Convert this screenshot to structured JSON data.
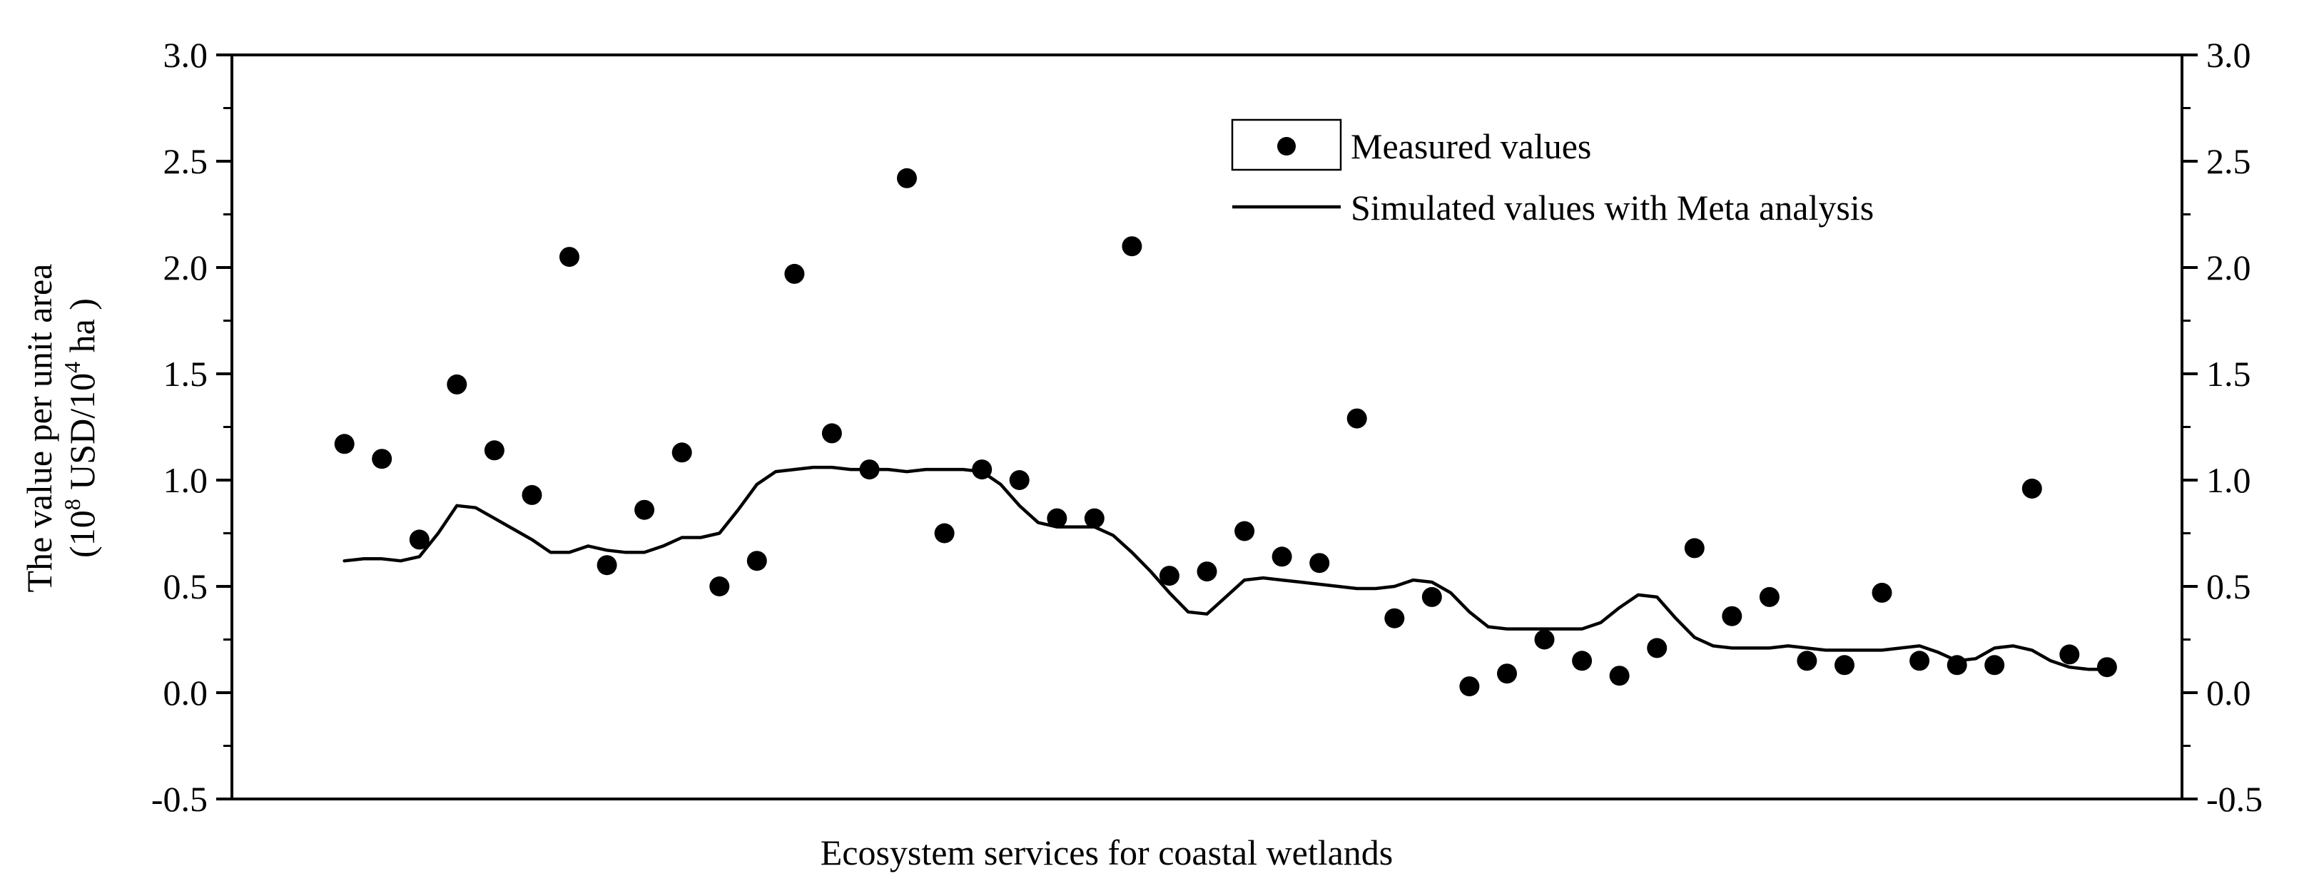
{
  "chart_data": {
    "type": "scatter",
    "title": "",
    "xlabel": "Ecosystem services for coastal wetlands",
    "ylabel_line1": "The value per unit area",
    "ylabel_line2_prefix": "(10",
    "ylabel_line2_sup1": "8",
    "ylabel_line2_mid": " USD/10",
    "ylabel_line2_sup2": "4",
    "ylabel_line2_suffix": " ha )",
    "ylim": [
      -0.5,
      3.0
    ],
    "xlim": [
      -2,
      50
    ],
    "yticks_major": [
      "-0.5",
      "0.0",
      "0.5",
      "1.0",
      "1.5",
      "2.0",
      "2.5",
      "3.0"
    ],
    "ytick_values": [
      -0.5,
      0.0,
      0.5,
      1.0,
      1.5,
      2.0,
      2.5,
      3.0
    ],
    "minor_step": 0.25,
    "legend_position": "top-right",
    "series": [
      {
        "name": "Measured values",
        "kind": "points",
        "x": [
          1,
          2,
          3,
          4,
          5,
          6,
          7,
          8,
          9,
          10,
          11,
          12,
          13,
          14,
          15,
          16,
          17,
          18,
          19,
          20,
          21,
          22,
          23,
          24,
          25,
          26,
          27,
          28,
          29,
          30,
          31,
          32,
          33,
          34,
          35,
          36,
          37,
          38,
          39,
          40,
          41,
          42,
          43,
          44,
          45,
          46,
          47,
          48
        ],
        "values": [
          1.17,
          1.1,
          0.72,
          1.45,
          1.14,
          0.93,
          2.05,
          0.6,
          0.86,
          1.13,
          0.5,
          0.62,
          1.97,
          1.22,
          1.05,
          2.42,
          0.75,
          1.05,
          1.0,
          0.82,
          0.82,
          2.1,
          0.55,
          0.57,
          0.76,
          0.64,
          0.61,
          1.29,
          0.35,
          0.45,
          0.03,
          0.09,
          0.25,
          0.15,
          0.08,
          0.21,
          0.68,
          0.36,
          0.45,
          0.15,
          0.13,
          0.47,
          0.15,
          0.13,
          0.13,
          0.96,
          0.18,
          0.12
        ],
        "color": "#000000"
      },
      {
        "name": "Simulated values with Meta analysis",
        "kind": "line",
        "x": [
          1,
          1.5,
          2,
          2.5,
          3,
          3.5,
          4,
          4.5,
          5,
          5.5,
          6,
          6.5,
          7,
          7.5,
          8,
          8.5,
          9,
          9.5,
          10,
          10.5,
          11,
          11.5,
          12,
          12.5,
          13,
          13.5,
          14,
          14.5,
          15,
          15.5,
          16,
          16.5,
          17,
          17.5,
          18,
          18.5,
          19,
          19.5,
          20,
          20.5,
          21,
          21.5,
          22,
          22.5,
          23,
          23.5,
          24,
          24.5,
          25,
          25.5,
          26,
          26.5,
          27,
          27.5,
          28,
          28.5,
          29,
          29.5,
          30,
          30.5,
          31,
          31.5,
          32,
          32.5,
          33,
          33.5,
          34,
          34.5,
          35,
          35.5,
          36,
          36.5,
          37,
          37.5,
          38,
          38.5,
          39,
          39.5,
          40,
          40.5,
          41,
          41.5,
          42,
          42.5,
          43,
          43.5,
          44,
          44.5,
          45,
          45.5,
          46,
          46.5,
          47,
          47.5,
          48
        ],
        "values": [
          0.62,
          0.63,
          0.63,
          0.62,
          0.64,
          0.75,
          0.88,
          0.87,
          0.82,
          0.77,
          0.72,
          0.66,
          0.66,
          0.69,
          0.67,
          0.66,
          0.66,
          0.69,
          0.73,
          0.73,
          0.75,
          0.86,
          0.98,
          1.04,
          1.05,
          1.06,
          1.06,
          1.05,
          1.05,
          1.05,
          1.04,
          1.05,
          1.05,
          1.05,
          1.04,
          0.98,
          0.88,
          0.8,
          0.78,
          0.78,
          0.78,
          0.74,
          0.66,
          0.57,
          0.47,
          0.38,
          0.37,
          0.45,
          0.53,
          0.54,
          0.53,
          0.52,
          0.51,
          0.5,
          0.49,
          0.49,
          0.5,
          0.53,
          0.52,
          0.47,
          0.38,
          0.31,
          0.3,
          0.3,
          0.3,
          0.3,
          0.3,
          0.33,
          0.4,
          0.46,
          0.45,
          0.35,
          0.26,
          0.22,
          0.21,
          0.21,
          0.21,
          0.22,
          0.21,
          0.2,
          0.2,
          0.2,
          0.2,
          0.21,
          0.22,
          0.19,
          0.15,
          0.16,
          0.21,
          0.22,
          0.2,
          0.15,
          0.12,
          0.11,
          0.11
        ],
        "color": "#000000"
      }
    ]
  }
}
